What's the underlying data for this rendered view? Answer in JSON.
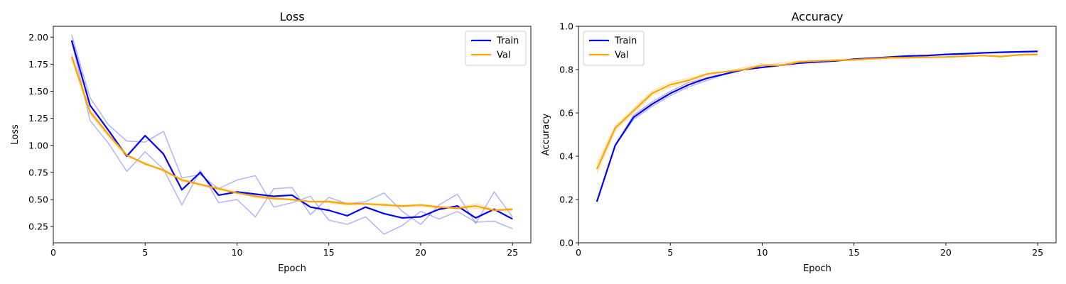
{
  "chart_data": [
    {
      "type": "line",
      "title": "Loss",
      "xlabel": "Epoch",
      "ylabel": "Loss",
      "xlim": [
        0,
        26
      ],
      "ylim": [
        0.1,
        2.1
      ],
      "xticks": [
        0,
        5,
        10,
        15,
        20,
        25
      ],
      "yticks": [
        0.25,
        0.5,
        0.75,
        1.0,
        1.25,
        1.5,
        1.75,
        2.0
      ],
      "ytick_decimals": 2,
      "grid": false,
      "legend_placement": "top-right",
      "x": [
        1,
        2,
        3,
        4,
        5,
        6,
        7,
        8,
        9,
        10,
        11,
        12,
        13,
        14,
        15,
        16,
        17,
        18,
        19,
        20,
        21,
        22,
        23,
        24,
        25
      ],
      "series": [
        {
          "name": "Train",
          "color": "#0000ff",
          "values": [
            1.97,
            1.37,
            1.14,
            0.9,
            1.09,
            0.92,
            0.59,
            0.75,
            0.54,
            0.57,
            0.55,
            0.53,
            0.54,
            0.43,
            0.4,
            0.35,
            0.43,
            0.37,
            0.33,
            0.34,
            0.41,
            0.44,
            0.33,
            0.41,
            0.32
          ],
          "runs": [
            [
              2.02,
              1.44,
              1.19,
              1.04,
              1.03,
              1.13,
              0.7,
              0.73,
              0.6,
              0.68,
              0.72,
              0.43,
              0.47,
              0.53,
              0.31,
              0.27,
              0.34,
              0.18,
              0.26,
              0.39,
              0.32,
              0.39,
              0.29,
              0.3,
              0.23
            ],
            [
              1.96,
              1.23,
              1.02,
              0.76,
              0.94,
              0.78,
              0.45,
              0.77,
              0.47,
              0.5,
              0.34,
              0.6,
              0.61,
              0.36,
              0.52,
              0.46,
              0.48,
              0.56,
              0.39,
              0.27,
              0.45,
              0.55,
              0.28,
              0.57,
              0.34
            ]
          ]
        },
        {
          "name": "Val",
          "color": "#ffa500",
          "values": [
            1.82,
            1.31,
            1.1,
            0.91,
            0.83,
            0.77,
            0.68,
            0.64,
            0.6,
            0.56,
            0.53,
            0.51,
            0.5,
            0.48,
            0.48,
            0.46,
            0.46,
            0.45,
            0.44,
            0.45,
            0.43,
            0.42,
            0.44,
            0.4,
            0.41
          ],
          "runs": [
            [
              1.85,
              1.33,
              1.12,
              0.92,
              0.82,
              0.78,
              0.69,
              0.64,
              0.61,
              0.56,
              0.54,
              0.52,
              0.49,
              0.48,
              0.49,
              0.47,
              0.46,
              0.45,
              0.43,
              0.44,
              0.42,
              0.42,
              0.46,
              0.41,
              0.4
            ],
            [
              1.8,
              1.29,
              1.08,
              0.9,
              0.84,
              0.76,
              0.67,
              0.63,
              0.59,
              0.57,
              0.52,
              0.5,
              0.5,
              0.48,
              0.47,
              0.45,
              0.46,
              0.46,
              0.44,
              0.45,
              0.44,
              0.41,
              0.42,
              0.4,
              0.42
            ]
          ]
        }
      ]
    },
    {
      "type": "line",
      "title": "Accuracy",
      "xlabel": "Epoch",
      "ylabel": "Accuracy",
      "xlim": [
        0,
        26
      ],
      "ylim": [
        0.0,
        1.0
      ],
      "xticks": [
        0,
        5,
        10,
        15,
        20,
        25
      ],
      "yticks": [
        0.0,
        0.2,
        0.4,
        0.6,
        0.8,
        1.0
      ],
      "ytick_decimals": 1,
      "grid": false,
      "legend_placement": "top-left",
      "x": [
        1,
        2,
        3,
        4,
        5,
        6,
        7,
        8,
        9,
        10,
        11,
        12,
        13,
        14,
        15,
        16,
        17,
        18,
        19,
        20,
        21,
        22,
        23,
        24,
        25
      ],
      "series": [
        {
          "name": "Train",
          "color": "#0000ff",
          "values": [
            0.19,
            0.45,
            0.58,
            0.64,
            0.69,
            0.73,
            0.76,
            0.78,
            0.8,
            0.81,
            0.82,
            0.83,
            0.835,
            0.84,
            0.848,
            0.853,
            0.858,
            0.863,
            0.865,
            0.87,
            0.873,
            0.877,
            0.88,
            0.882,
            0.884
          ],
          "runs": [
            [
              0.19,
              0.45,
              0.57,
              0.63,
              0.68,
              0.72,
              0.75,
              0.78,
              0.8,
              0.81,
              0.82,
              0.83,
              0.835,
              0.84,
              0.847,
              0.852,
              0.858,
              0.862,
              0.865,
              0.869,
              0.873,
              0.876,
              0.88,
              0.882,
              0.884
            ],
            [
              0.19,
              0.45,
              0.59,
              0.65,
              0.7,
              0.74,
              0.76,
              0.78,
              0.8,
              0.81,
              0.82,
              0.83,
              0.836,
              0.841,
              0.849,
              0.854,
              0.859,
              0.864,
              0.866,
              0.871,
              0.874,
              0.878,
              0.881,
              0.883,
              0.885
            ]
          ]
        },
        {
          "name": "Val",
          "color": "#ffa500",
          "values": [
            0.34,
            0.53,
            0.61,
            0.69,
            0.73,
            0.75,
            0.78,
            0.79,
            0.8,
            0.82,
            0.82,
            0.835,
            0.84,
            0.843,
            0.845,
            0.85,
            0.855,
            0.855,
            0.857,
            0.858,
            0.862,
            0.865,
            0.86,
            0.868,
            0.87
          ],
          "runs": [
            [
              0.32,
              0.52,
              0.6,
              0.68,
              0.72,
              0.74,
              0.77,
              0.78,
              0.8,
              0.81,
              0.82,
              0.83,
              0.838,
              0.842,
              0.843,
              0.848,
              0.853,
              0.854,
              0.856,
              0.857,
              0.861,
              0.864,
              0.859,
              0.866,
              0.868
            ],
            [
              0.36,
              0.54,
              0.62,
              0.7,
              0.74,
              0.76,
              0.78,
              0.79,
              0.81,
              0.82,
              0.83,
              0.84,
              0.842,
              0.845,
              0.847,
              0.852,
              0.857,
              0.857,
              0.858,
              0.859,
              0.863,
              0.866,
              0.862,
              0.869,
              0.871
            ]
          ]
        }
      ]
    }
  ]
}
